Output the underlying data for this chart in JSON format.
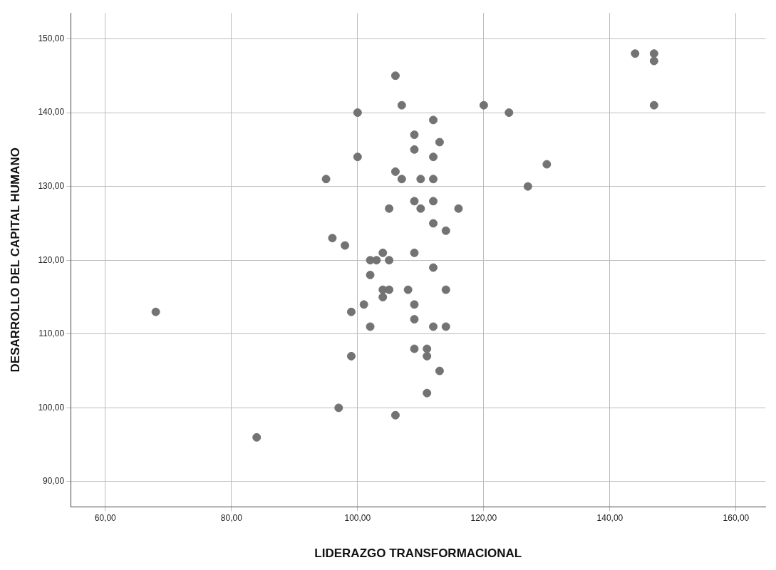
{
  "chart_data": {
    "type": "scatter",
    "xlabel": "LIDERAZGO TRANSFORMACIONAL",
    "ylabel": "DESARROLLO DEL CAPITAL HUMANO",
    "x": [
      68,
      84,
      95,
      96,
      97,
      98,
      99,
      99,
      100,
      100,
      101,
      102,
      102,
      102,
      103,
      104,
      104,
      104,
      105,
      105,
      105,
      106,
      106,
      106,
      107,
      107,
      108,
      109,
      109,
      109,
      109,
      109,
      109,
      109,
      110,
      110,
      111,
      111,
      111,
      112,
      112,
      112,
      112,
      112,
      112,
      112,
      113,
      113,
      114,
      114,
      114,
      116,
      120,
      124,
      127,
      130,
      144,
      147,
      147,
      147
    ],
    "series": [
      {
        "color": "#737373",
        "values": [
          113,
          96,
          131,
          123,
          100,
          122,
          113,
          107,
          140,
          134,
          114,
          120,
          118,
          111,
          120,
          121,
          116,
          115,
          127,
          120,
          116,
          145,
          132,
          99,
          141,
          131,
          116,
          137,
          135,
          128,
          121,
          114,
          112,
          108,
          131,
          127,
          108,
          107,
          102,
          139,
          134,
          131,
          128,
          125,
          119,
          111,
          136,
          105,
          124,
          116,
          111,
          127,
          141,
          140,
          130,
          133,
          148,
          148,
          147,
          141
        ]
      }
    ],
    "xlim": [
      54.5,
      164.7
    ],
    "ylim": [
      86.6,
      153.5
    ],
    "xticks": [
      {
        "value": 60,
        "label": "60,00"
      },
      {
        "value": 80,
        "label": "80,00"
      },
      {
        "value": 100,
        "label": "100,00"
      },
      {
        "value": 120,
        "label": "120,00"
      },
      {
        "value": 140,
        "label": "140,00"
      },
      {
        "value": 160,
        "label": "160,00"
      }
    ],
    "yticks": [
      {
        "value": 90,
        "label": "90,00"
      },
      {
        "value": 100,
        "label": "100,00"
      },
      {
        "value": 110,
        "label": "110,00"
      },
      {
        "value": 120,
        "label": "120,00"
      },
      {
        "value": 130,
        "label": "130,00"
      },
      {
        "value": 140,
        "label": "140,00"
      },
      {
        "value": 150,
        "label": "150,00"
      }
    ],
    "grid": true,
    "legend": false,
    "marker": "circle"
  }
}
